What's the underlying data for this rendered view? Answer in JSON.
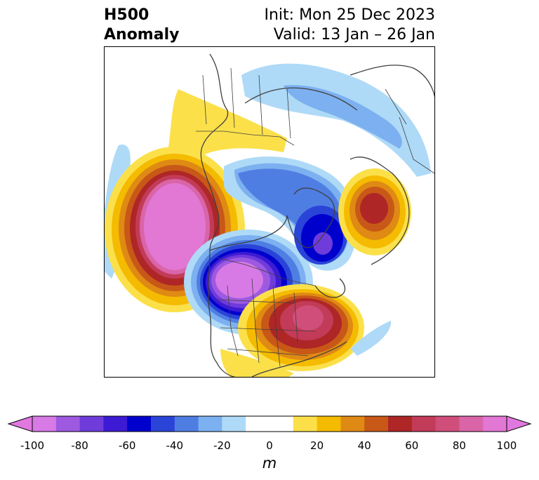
{
  "title": {
    "line1": "H500",
    "line2": "Anomaly",
    "init": "Init: Mon 25 Dec 2023",
    "valid": "Valid: 13 Jan – 26 Jan"
  },
  "colorbar": {
    "unit": "m",
    "ticks": [
      "-100",
      "-80",
      "-60",
      "-40",
      "-20",
      "0",
      "20",
      "40",
      "60",
      "80",
      "100"
    ],
    "colors": [
      "#d77ae6",
      "#9d5ae0",
      "#6f3cdb",
      "#3d1ad3",
      "#0000cd",
      "#2a44d8",
      "#4f7ee3",
      "#7cb0f0",
      "#aedaf7",
      "#ffffff",
      "#ffffff",
      "#fbe04a",
      "#f4bb00",
      "#df8a14",
      "#c85818",
      "#ae2626",
      "#c23b58",
      "#cf4f7a",
      "#d965a8",
      "#e277d4"
    ],
    "under_color": "#e078e0",
    "over_color": "#e078e0"
  }
}
